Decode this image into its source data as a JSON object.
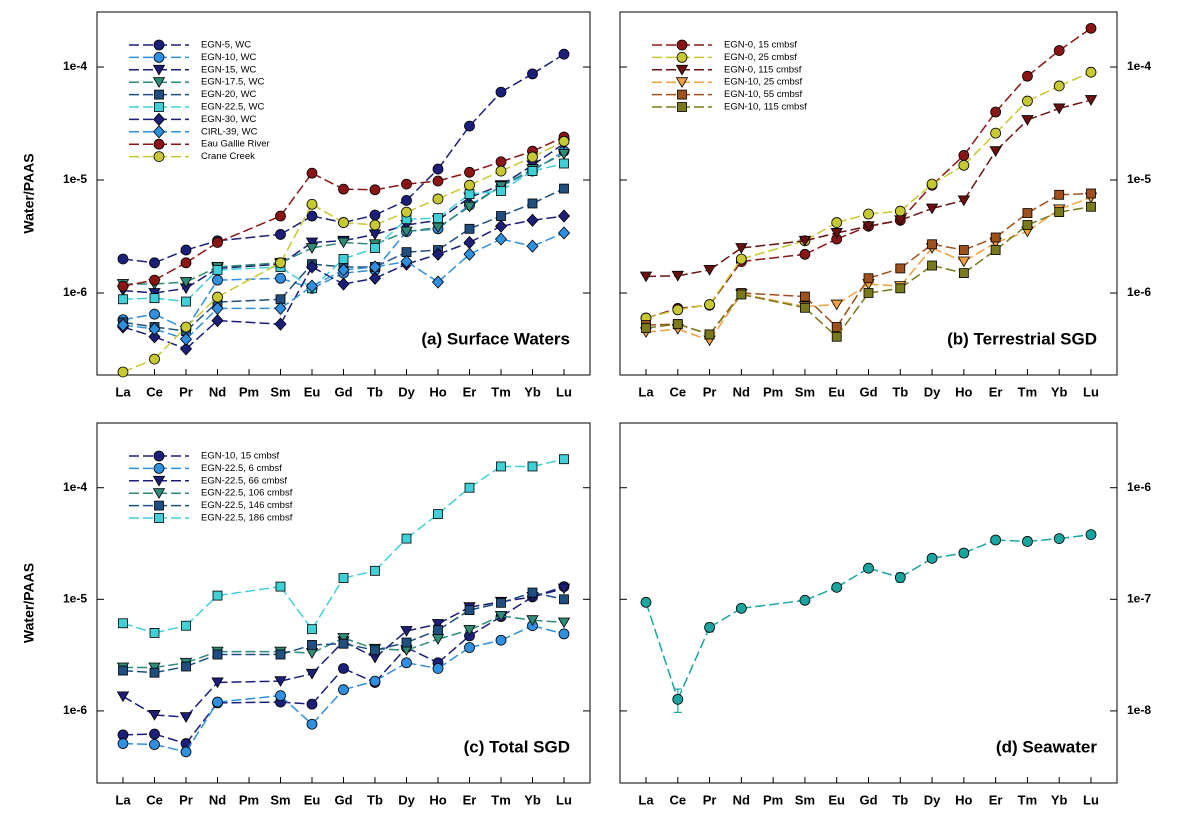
{
  "chart_data": [
    {
      "type": "line",
      "title": "(a) Surface Waters",
      "ylabel": "Water/PAAS",
      "log_y": true,
      "yaxis_side": "left",
      "legend": "upper left",
      "categories": [
        "La",
        "Ce",
        "Pr",
        "Nd",
        "Pm",
        "Sm",
        "Eu",
        "Gd",
        "Tb",
        "Dy",
        "Ho",
        "Er",
        "Tm",
        "Yb",
        "Lu"
      ],
      "ylim": [
        1.88e-07,
        0.000307
      ],
      "yticks": [
        {
          "value": 1e-06,
          "label": "1e-6"
        },
        {
          "value": 1e-05,
          "label": "1e-5"
        },
        {
          "value": 0.0001,
          "label": "1e-4"
        }
      ],
      "series": [
        {
          "name": "EGN-5, WC",
          "color": "#1b1f7a",
          "marker": "circle",
          "values": [
            2e-06,
            1.85e-06,
            2.4e-06,
            2.9e-06,
            null,
            3.3e-06,
            4.8e-06,
            4.2e-06,
            4.9e-06,
            6.6e-06,
            1.25e-05,
            3e-05,
            6e-05,
            8.7e-05,
            0.00013
          ]
        },
        {
          "name": "EGN-10, WC",
          "color": "#2f8fe0",
          "marker": "circle",
          "values": [
            5.8e-07,
            6.5e-07,
            4.8e-07,
            1.3e-06,
            null,
            1.35e-06,
            1.1e-06,
            1.5e-06,
            1.6e-06,
            3.5e-06,
            3.7e-06,
            6e-06,
            8.8e-06,
            1.2e-05,
            1.8e-05
          ]
        },
        {
          "name": "EGN-15, WC",
          "color": "#1b1f7a",
          "marker": "triangle-down",
          "values": [
            1.05e-06,
            1e-06,
            1.1e-06,
            1.65e-06,
            null,
            1.8e-06,
            2.8e-06,
            2.9e-06,
            3.3e-06,
            4e-06,
            4.4e-06,
            7e-06,
            9e-06,
            1.35e-05,
            2.1e-05
          ]
        },
        {
          "name": "EGN-17.5, WC",
          "color": "#2e8b78",
          "marker": "triangle-down",
          "values": [
            1.2e-06,
            1.2e-06,
            1.25e-06,
            1.7e-06,
            null,
            1.85e-06,
            2.5e-06,
            2.8e-06,
            2.7e-06,
            3.5e-06,
            3.8e-06,
            5.8e-06,
            8.8e-06,
            1.25e-05,
            1.7e-05
          ]
        },
        {
          "name": "EGN-20, WC",
          "color": "#1f4f80",
          "marker": "square",
          "values": [
            5.5e-07,
            5e-07,
            4.6e-07,
            8.3e-07,
            null,
            8.8e-07,
            1.8e-06,
            1.7e-06,
            1.7e-06,
            2.3e-06,
            2.4e-06,
            3.7e-06,
            4.8e-06,
            6.2e-06,
            8.4e-06
          ]
        },
        {
          "name": "EGN-22.5, WC",
          "color": "#40d0d8",
          "marker": "square",
          "values": [
            8.8e-07,
            9e-07,
            8.4e-07,
            1.6e-06,
            null,
            1.7e-06,
            1.1e-06,
            2e-06,
            2.5e-06,
            4.5e-06,
            4.6e-06,
            7.5e-06,
            8e-06,
            1.2e-05,
            1.4e-05
          ]
        },
        {
          "name": "EGN-30, WC",
          "color": "#1b1f7a",
          "marker": "diamond",
          "values": [
            5e-07,
            4.1e-07,
            3.2e-07,
            5.7e-07,
            null,
            5.3e-07,
            1.7e-06,
            1.2e-06,
            1.35e-06,
            1.8e-06,
            2.2e-06,
            2.8e-06,
            3.9e-06,
            4.4e-06,
            4.8e-06
          ]
        },
        {
          "name": "CIRL-39, WC",
          "color": "#2f8fe0",
          "marker": "diamond",
          "values": [
            5.2e-07,
            4.8e-07,
            3.9e-07,
            7.3e-07,
            null,
            7.3e-07,
            1.15e-06,
            1.6e-06,
            1.7e-06,
            1.9e-06,
            1.25e-06,
            2.2e-06,
            3e-06,
            2.6e-06,
            3.4e-06
          ]
        },
        {
          "name": "Eau Gallie River",
          "color": "#8b1515",
          "marker": "circle",
          "values": [
            1.15e-06,
            1.3e-06,
            1.85e-06,
            2.8e-06,
            null,
            4.8e-06,
            1.15e-05,
            8.3e-06,
            8.2e-06,
            9.2e-06,
            9.8e-06,
            1.17e-05,
            1.45e-05,
            1.8e-05,
            2.4e-05
          ]
        },
        {
          "name": "Crane Creek",
          "color": "#c8c832",
          "marker": "circle",
          "values": [
            2e-07,
            2.6e-07,
            5e-07,
            9.2e-07,
            null,
            1.85e-06,
            6.1e-06,
            4.2e-06,
            4e-06,
            5.2e-06,
            6.8e-06,
            9e-06,
            1.2e-05,
            1.6e-05,
            2.2e-05
          ]
        }
      ]
    },
    {
      "type": "line",
      "title": "(b) Terrestrial SGD",
      "log_y": true,
      "yaxis_side": "right",
      "legend": "upper left",
      "categories": [
        "La",
        "Ce",
        "Pr",
        "Nd",
        "Pm",
        "Sm",
        "Eu",
        "Gd",
        "Tb",
        "Dy",
        "Ho",
        "Er",
        "Tm",
        "Yb",
        "Lu"
      ],
      "ylim": [
        1.88e-07,
        0.000307
      ],
      "yticks": [
        {
          "value": 1e-06,
          "label": "1e-6"
        },
        {
          "value": 1e-05,
          "label": "1e-5"
        },
        {
          "value": 0.0001,
          "label": "1e-4"
        }
      ],
      "series": [
        {
          "name": "EGN-0, 15 cmbsf",
          "color": "#8b1515",
          "marker": "circle",
          "values": [
            6e-07,
            7.3e-07,
            7.8e-07,
            1.9e-06,
            null,
            2.2e-06,
            3e-06,
            3.9e-06,
            4.4e-06,
            9e-06,
            1.65e-05,
            4e-05,
            8.3e-05,
            0.00014,
            0.00022
          ]
        },
        {
          "name": "EGN-0, 25 cmbsf",
          "color": "#c8c832",
          "marker": "circle",
          "values": [
            6e-07,
            7.1e-07,
            7.9e-07,
            2e-06,
            null,
            2.9e-06,
            4.2e-06,
            5e-06,
            5.3e-06,
            9.2e-06,
            1.35e-05,
            2.6e-05,
            5e-05,
            6.8e-05,
            9e-05
          ]
        },
        {
          "name": "EGN-0, 115 cmbsf",
          "color": "#6b1010",
          "marker": "triangle-down",
          "values": [
            1.4e-06,
            1.42e-06,
            1.6e-06,
            2.5e-06,
            null,
            2.9e-06,
            3.4e-06,
            3.9e-06,
            4.4e-06,
            5.6e-06,
            6.6e-06,
            1.8e-05,
            3.4e-05,
            4.3e-05,
            5.1e-05
          ]
        },
        {
          "name": "EGN-10, 25 cmbsf",
          "color": "#f0a040",
          "marker": "triangle-down",
          "values": [
            4.5e-07,
            4.8e-07,
            3.8e-07,
            9.8e-07,
            null,
            7.6e-07,
            7.9e-07,
            1.2e-06,
            1.15e-06,
            2.5e-06,
            1.9e-06,
            2.8e-06,
            3.5e-06,
            5.5e-06,
            7e-06
          ]
        },
        {
          "name": "EGN-10, 55 cmbsf",
          "color": "#a0501a",
          "marker": "square",
          "values": [
            5.2e-07,
            5.3e-07,
            4.3e-07,
            1e-06,
            null,
            9.3e-07,
            5e-07,
            1.35e-06,
            1.65e-06,
            2.7e-06,
            2.4e-06,
            3.1e-06,
            5.1e-06,
            7.4e-06,
            7.6e-06
          ]
        },
        {
          "name": "EGN-10, 115 cmbsf",
          "color": "#7a7a1a",
          "marker": "square",
          "values": [
            4.9e-07,
            5.3e-07,
            4.3e-07,
            9.7e-07,
            null,
            7.4e-07,
            4.1e-07,
            1e-06,
            1.1e-06,
            1.75e-06,
            1.5e-06,
            2.4e-06,
            4e-06,
            5.2e-06,
            5.8e-06
          ]
        }
      ]
    },
    {
      "type": "line",
      "title": "(c) Total SGD",
      "ylabel": "Water/PAAS",
      "log_y": true,
      "yaxis_side": "left",
      "legend": "upper left",
      "categories": [
        "La",
        "Ce",
        "Pr",
        "Nd",
        "Pm",
        "Sm",
        "Eu",
        "Gd",
        "Tb",
        "Dy",
        "Ho",
        "Er",
        "Tm",
        "Yb",
        "Lu"
      ],
      "ylim": [
        2.26e-07,
        0.00038
      ],
      "yticks": [
        {
          "value": 1e-06,
          "label": "1e-6"
        },
        {
          "value": 1e-05,
          "label": "1e-5"
        },
        {
          "value": 0.0001,
          "label": "1e-4"
        }
      ],
      "series": [
        {
          "name": "EGN-10, 15 cmbsf",
          "color": "#1b1f7a",
          "marker": "circle",
          "values": [
            6.1e-07,
            6.2e-07,
            5.1e-07,
            1.18e-06,
            null,
            1.2e-06,
            1.15e-06,
            2.4e-06,
            1.8e-06,
            3.7e-06,
            2.7e-06,
            4.7e-06,
            7e-06,
            1.05e-05,
            1.3e-05
          ]
        },
        {
          "name": "EGN-22.5, 6 cmbsf",
          "color": "#2f8fe0",
          "marker": "circle",
          "values": [
            5.1e-07,
            5e-07,
            4.3e-07,
            1.2e-06,
            null,
            1.37e-06,
            7.6e-07,
            1.55e-06,
            1.85e-06,
            2.7e-06,
            2.4e-06,
            3.7e-06,
            4.3e-06,
            5.8e-06,
            4.9e-06
          ]
        },
        {
          "name": "EGN-22.5, 66 cmbsf",
          "color": "#1b1f7a",
          "marker": "triangle-down",
          "values": [
            1.35e-06,
            9.2e-07,
            8.8e-07,
            1.8e-06,
            null,
            1.85e-06,
            2.15e-06,
            4.2e-06,
            3e-06,
            5.2e-06,
            6e-06,
            8.5e-06,
            9.5e-06,
            1.05e-05,
            1.25e-05
          ]
        },
        {
          "name": "EGN-22.5, 106 cmbsf",
          "color": "#2e8b78",
          "marker": "triangle-down",
          "values": [
            2.45e-06,
            2.45e-06,
            2.7e-06,
            3.4e-06,
            null,
            3.4e-06,
            3.3e-06,
            4.5e-06,
            3.6e-06,
            3.5e-06,
            4.4e-06,
            5.3e-06,
            7.1e-06,
            6.5e-06,
            6.2e-06
          ]
        },
        {
          "name": "EGN-22.5, 146 cmbsf",
          "color": "#1f4f80",
          "marker": "square",
          "values": [
            2.3e-06,
            2.2e-06,
            2.5e-06,
            3.2e-06,
            null,
            3.2e-06,
            3.9e-06,
            4e-06,
            3.5e-06,
            4.1e-06,
            5.3e-06,
            8e-06,
            9.3e-06,
            1.15e-05,
            1e-05
          ]
        },
        {
          "name": "EGN-22.5, 186 cmbsf",
          "color": "#40d0d8",
          "marker": "square",
          "values": [
            6.1e-06,
            5e-06,
            5.8e-06,
            1.08e-05,
            null,
            1.3e-05,
            5.4e-06,
            1.55e-05,
            1.8e-05,
            3.5e-05,
            5.8e-05,
            0.0001,
            0.000155,
            0.000155,
            0.00018
          ]
        }
      ]
    },
    {
      "type": "line",
      "title": "(d) Seawater",
      "log_y": true,
      "yaxis_side": "right",
      "categories": [
        "La",
        "Ce",
        "Pr",
        "Nd",
        "Pm",
        "Sm",
        "Eu",
        "Gd",
        "Tb",
        "Dy",
        "Ho",
        "Er",
        "Tm",
        "Yb",
        "Lu"
      ],
      "ylim": [
        2.26e-09,
        3.8e-06
      ],
      "yticks": [
        {
          "value": 1e-08,
          "label": "1e-8"
        },
        {
          "value": 1e-07,
          "label": "1e-7"
        },
        {
          "value": 1e-06,
          "label": "1e-6"
        }
      ],
      "color": "#1aa5a0",
      "marker": "circle",
      "values": [
        9.4e-08,
        1.27e-08,
        5.6e-08,
        8.3e-08,
        null,
        9.8e-08,
        1.28e-07,
        1.9e-07,
        1.57e-07,
        2.33e-07,
        2.6e-07,
        3.4e-07,
        3.3e-07,
        3.5e-07,
        3.8e-07
      ],
      "errors": [
        5e-09,
        3e-09,
        5e-09,
        4e-09,
        null,
        5e-09,
        7e-09,
        1e-08,
        1.5e-08,
        1.2e-08,
        2e-08,
        1.7e-08,
        2.5e-08,
        1.8e-08,
        2e-08
      ]
    }
  ]
}
